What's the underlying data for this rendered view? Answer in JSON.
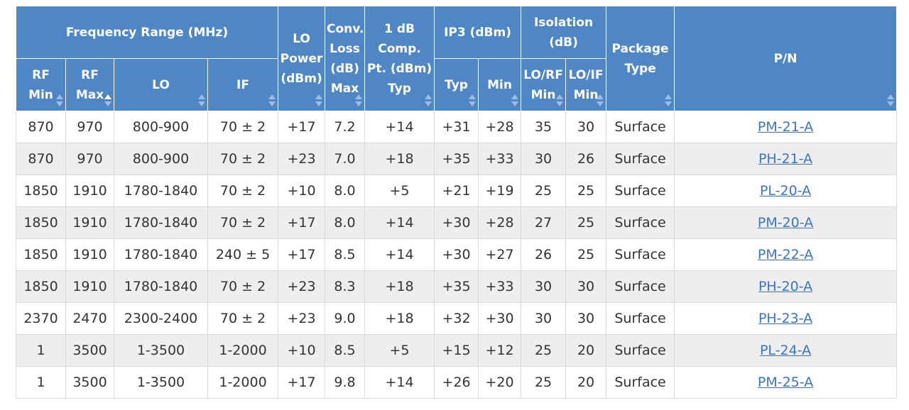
{
  "header": {
    "frequency_range": "Frequency Range (MHz)",
    "rf_min": "RF Min",
    "rf_max": "RF Max",
    "lo": "LO",
    "if": "IF",
    "lo_power": "LO Power (dBm)",
    "conv_loss": "Conv. Loss (dB) Max",
    "comp_pt": "1 dB Comp. Pt. (dBm) Typ",
    "ip3": "IP3 (dBm)",
    "ip3_typ": "Typ",
    "ip3_min": "Min",
    "isolation": "Isolation (dB)",
    "lo_rf_min": "LO/RF Min",
    "lo_if_min": "LO/IF Min",
    "package_type": "Package Type",
    "pn": "P/N"
  },
  "rows": [
    {
      "rf_min": "870",
      "rf_max": "970",
      "lo": "800-900",
      "if": "70 ± 2",
      "lo_power": "+17",
      "conv_loss": "7.2",
      "comp": "+14",
      "ip3_typ": "+31",
      "ip3_min": "+28",
      "lo_rf": "35",
      "lo_if": "30",
      "package": "Surface",
      "pn": "PM-21-A"
    },
    {
      "rf_min": "870",
      "rf_max": "970",
      "lo": "800-900",
      "if": "70 ± 2",
      "lo_power": "+23",
      "conv_loss": "7.0",
      "comp": "+18",
      "ip3_typ": "+35",
      "ip3_min": "+33",
      "lo_rf": "30",
      "lo_if": "26",
      "package": "Surface",
      "pn": "PH-21-A"
    },
    {
      "rf_min": "1850",
      "rf_max": "1910",
      "lo": "1780-1840",
      "if": "70 ± 2",
      "lo_power": "+10",
      "conv_loss": "8.0",
      "comp": "+5",
      "ip3_typ": "+21",
      "ip3_min": "+19",
      "lo_rf": "25",
      "lo_if": "25",
      "package": "Surface",
      "pn": "PL-20-A"
    },
    {
      "rf_min": "1850",
      "rf_max": "1910",
      "lo": "1780-1840",
      "if": "70 ± 2",
      "lo_power": "+17",
      "conv_loss": "8.0",
      "comp": "+14",
      "ip3_typ": "+30",
      "ip3_min": "+28",
      "lo_rf": "27",
      "lo_if": "25",
      "package": "Surface",
      "pn": "PM-20-A"
    },
    {
      "rf_min": "1850",
      "rf_max": "1910",
      "lo": "1780-1840",
      "if": "240 ± 5",
      "lo_power": "+17",
      "conv_loss": "8.5",
      "comp": "+14",
      "ip3_typ": "+30",
      "ip3_min": "+27",
      "lo_rf": "26",
      "lo_if": "25",
      "package": "Surface",
      "pn": "PM-22-A"
    },
    {
      "rf_min": "1850",
      "rf_max": "1910",
      "lo": "1780-1840",
      "if": "70 ± 2",
      "lo_power": "+23",
      "conv_loss": "8.3",
      "comp": "+18",
      "ip3_typ": "+35",
      "ip3_min": "+33",
      "lo_rf": "30",
      "lo_if": "30",
      "package": "Surface",
      "pn": "PH-20-A"
    },
    {
      "rf_min": "2370",
      "rf_max": "2470",
      "lo": "2300-2400",
      "if": "70 ± 2",
      "lo_power": "+23",
      "conv_loss": "9.0",
      "comp": "+18",
      "ip3_typ": "+32",
      "ip3_min": "+30",
      "lo_rf": "30",
      "lo_if": "30",
      "package": "Surface",
      "pn": "PH-23-A"
    },
    {
      "rf_min": "1",
      "rf_max": "3500",
      "lo": "1-3500",
      "if": "1-2000",
      "lo_power": "+10",
      "conv_loss": "8.5",
      "comp": "+5",
      "ip3_typ": "+15",
      "ip3_min": "+12",
      "lo_rf": "25",
      "lo_if": "20",
      "package": "Surface",
      "pn": "PL-24-A"
    },
    {
      "rf_min": "1",
      "rf_max": "3500",
      "lo": "1-3500",
      "if": "1-2000",
      "lo_power": "+17",
      "conv_loss": "9.8",
      "comp": "+14",
      "ip3_typ": "+26",
      "ip3_min": "+20",
      "lo_rf": "25",
      "lo_if": "20",
      "package": "Surface",
      "pn": "PM-25-A"
    }
  ],
  "colors": {
    "header_bg": "#4f86c6",
    "link": "#3a74c4",
    "row_alt": "#eeeeee"
  },
  "icons": {
    "sort": "sort-arrows-icon",
    "sort_active": "sort-ascending-icon"
  }
}
